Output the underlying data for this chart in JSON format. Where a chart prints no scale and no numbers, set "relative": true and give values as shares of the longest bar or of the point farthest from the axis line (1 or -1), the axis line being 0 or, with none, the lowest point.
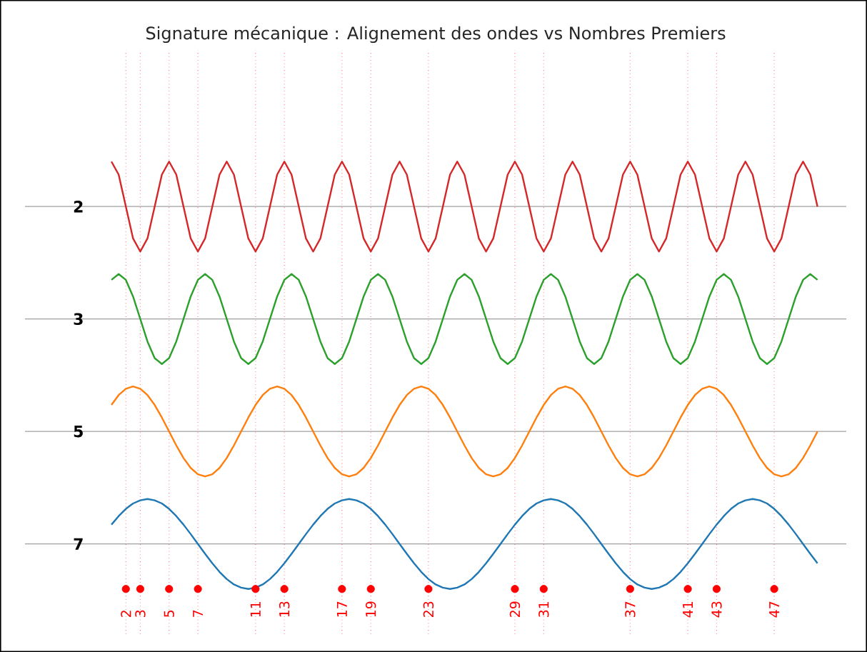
{
  "chart_data": [
    {
      "type": "line",
      "title": "Signature mécanique : Alignement des ondes vs Nombres Premiers",
      "relative": true,
      "tick_labels": false,
      "grid": "x",
      "marker": "none",
      "xlim": [
        -5,
        52
      ],
      "xticks": [
        2,
        3,
        5,
        7,
        11,
        13,
        17,
        19,
        23,
        29,
        31,
        37,
        41,
        43,
        47
      ],
      "x": [
        1,
        1.5,
        2,
        2.5,
        3,
        3.5,
        4,
        4.5,
        5,
        5.5,
        6,
        6.5,
        7,
        7.5,
        8,
        8.5,
        9,
        9.5,
        10,
        10.5,
        11,
        11.5,
        12,
        12.5,
        13,
        13.5,
        14,
        14.5,
        15,
        15.5,
        16,
        16.5,
        17,
        17.5,
        18,
        18.5,
        19,
        19.5,
        20,
        20.5,
        21,
        21.5,
        22,
        22.5,
        23,
        23.5,
        24,
        24.5,
        25,
        25.5,
        26,
        26.5,
        27,
        27.5,
        28,
        28.5,
        29,
        29.5,
        30,
        30.5,
        31,
        31.5,
        32,
        32.5,
        33,
        33.5,
        34,
        34.5,
        35,
        35.5,
        36,
        36.5,
        37,
        37.5,
        38,
        38.5,
        39,
        39.5,
        40,
        40.5,
        41,
        41.5,
        42,
        42.5,
        43,
        43.5,
        44,
        44.5,
        45,
        45.5,
        46,
        46.5,
        47,
        47.5,
        48,
        48.5,
        49,
        49.5,
        50
      ],
      "series": [
        {
          "name": "2",
          "color": "#d62728",
          "values": [
            1,
            0.71,
            0,
            -0.71,
            -1,
            -0.71,
            0,
            0.71,
            1,
            0.71,
            0,
            -0.71,
            -1,
            -0.71,
            0,
            0.71,
            1,
            0.71,
            0,
            -0.71,
            -1,
            -0.71,
            0,
            0.71,
            1,
            0.71,
            0,
            -0.71,
            -1,
            -0.71,
            0,
            0.71,
            1,
            0.71,
            0,
            -0.71,
            -1,
            -0.71,
            0,
            0.71,
            1,
            0.71,
            0,
            -0.71,
            -1,
            -0.71,
            0,
            0.71,
            1,
            0.71,
            0,
            -0.71,
            -1,
            -0.71,
            0,
            0.71,
            1,
            0.71,
            0,
            -0.71,
            -1,
            -0.71,
            0,
            0.71,
            1,
            0.71,
            0,
            -0.71,
            -1,
            -0.71,
            0,
            0.71,
            1,
            0.71,
            0,
            -0.71,
            -1,
            -0.71,
            0,
            0.71,
            1,
            0.71,
            0,
            -0.71,
            -1,
            -0.71,
            0,
            0.71,
            1,
            0.71,
            0,
            -0.71,
            -1,
            -0.71,
            0,
            0.71,
            1,
            0.71,
            0
          ]
        }
      ]
    },
    {
      "type": "line",
      "relative": true,
      "tick_labels": false,
      "grid": "x",
      "marker": "none",
      "xlim": [
        -5,
        52
      ],
      "xticks": [
        2,
        3,
        5,
        7,
        11,
        13,
        17,
        19,
        23,
        29,
        31,
        37,
        41,
        43,
        47
      ],
      "x": [
        1,
        1.5,
        2,
        2.5,
        3,
        3.5,
        4,
        4.5,
        5,
        5.5,
        6,
        6.5,
        7,
        7.5,
        8,
        8.5,
        9,
        9.5,
        10,
        10.5,
        11,
        11.5,
        12,
        12.5,
        13,
        13.5,
        14,
        14.5,
        15,
        15.5,
        16,
        16.5,
        17,
        17.5,
        18,
        18.5,
        19,
        19.5,
        20,
        20.5,
        21,
        21.5,
        22,
        22.5,
        23,
        23.5,
        24,
        24.5,
        25,
        25.5,
        26,
        26.5,
        27,
        27.5,
        28,
        28.5,
        29,
        29.5,
        30,
        30.5,
        31,
        31.5,
        32,
        32.5,
        33,
        33.5,
        34,
        34.5,
        35,
        35.5,
        36,
        36.5,
        37,
        37.5,
        38,
        38.5,
        39,
        39.5,
        40,
        40.5,
        41,
        41.5,
        42,
        42.5,
        43,
        43.5,
        44,
        44.5,
        45,
        45.5,
        46,
        46.5,
        47,
        47.5,
        48,
        48.5,
        49,
        49.5,
        50
      ],
      "series": [
        {
          "name": "3",
          "color": "#2ca02c",
          "values": [
            0.87,
            1,
            0.87,
            0.5,
            0,
            -0.5,
            -0.87,
            -1,
            -0.87,
            -0.5,
            0,
            0.5,
            0.87,
            1,
            0.87,
            0.5,
            0,
            -0.5,
            -0.87,
            -1,
            -0.87,
            -0.5,
            0,
            0.5,
            0.87,
            1,
            0.87,
            0.5,
            0,
            -0.5,
            -0.87,
            -1,
            -0.87,
            -0.5,
            0,
            0.5,
            0.87,
            1,
            0.87,
            0.5,
            0,
            -0.5,
            -0.87,
            -1,
            -0.87,
            -0.5,
            0,
            0.5,
            0.87,
            1,
            0.87,
            0.5,
            0,
            -0.5,
            -0.87,
            -1,
            -0.87,
            -0.5,
            0,
            0.5,
            0.87,
            1,
            0.87,
            0.5,
            0,
            -0.5,
            -0.87,
            -1,
            -0.87,
            -0.5,
            0,
            0.5,
            0.87,
            1,
            0.87,
            0.5,
            0,
            -0.5,
            -0.87,
            -1,
            -0.87,
            -0.5,
            0,
            0.5,
            0.87,
            1,
            0.87,
            0.5,
            0,
            -0.5,
            -0.87,
            -1,
            -0.87,
            -0.5,
            0,
            0.5,
            0.87,
            1,
            0.87
          ]
        }
      ]
    },
    {
      "type": "line",
      "relative": true,
      "tick_labels": false,
      "grid": "x",
      "marker": "none",
      "xlim": [
        -5,
        52
      ],
      "xticks": [
        2,
        3,
        5,
        7,
        11,
        13,
        17,
        19,
        23,
        29,
        31,
        37,
        41,
        43,
        47
      ],
      "x": [
        1,
        1.5,
        2,
        2.5,
        3,
        3.5,
        4,
        4.5,
        5,
        5.5,
        6,
        6.5,
        7,
        7.5,
        8,
        8.5,
        9,
        9.5,
        10,
        10.5,
        11,
        11.5,
        12,
        12.5,
        13,
        13.5,
        14,
        14.5,
        15,
        15.5,
        16,
        16.5,
        17,
        17.5,
        18,
        18.5,
        19,
        19.5,
        20,
        20.5,
        21,
        21.5,
        22,
        22.5,
        23,
        23.5,
        24,
        24.5,
        25,
        25.5,
        26,
        26.5,
        27,
        27.5,
        28,
        28.5,
        29,
        29.5,
        30,
        30.5,
        31,
        31.5,
        32,
        32.5,
        33,
        33.5,
        34,
        34.5,
        35,
        35.5,
        36,
        36.5,
        37,
        37.5,
        38,
        38.5,
        39,
        39.5,
        40,
        40.5,
        41,
        41.5,
        42,
        42.5,
        43,
        43.5,
        44,
        44.5,
        45,
        45.5,
        46,
        46.5,
        47,
        47.5,
        48,
        48.5,
        49,
        49.5,
        50
      ],
      "series": [
        {
          "name": "5",
          "color": "#ff7f0e",
          "values": [
            0.59,
            0.81,
            0.95,
            1,
            0.95,
            0.81,
            0.59,
            0.31,
            0,
            -0.31,
            -0.59,
            -0.81,
            -0.95,
            -1,
            -0.95,
            -0.81,
            -0.59,
            -0.31,
            0,
            0.31,
            0.59,
            0.81,
            0.95,
            1,
            0.95,
            0.81,
            0.59,
            0.31,
            0,
            -0.31,
            -0.59,
            -0.81,
            -0.95,
            -1,
            -0.95,
            -0.81,
            -0.59,
            -0.31,
            0,
            0.31,
            0.59,
            0.81,
            0.95,
            1,
            0.95,
            0.81,
            0.59,
            0.31,
            0,
            -0.31,
            -0.59,
            -0.81,
            -0.95,
            -1,
            -0.95,
            -0.81,
            -0.59,
            -0.31,
            0,
            0.31,
            0.59,
            0.81,
            0.95,
            1,
            0.95,
            0.81,
            0.59,
            0.31,
            0,
            -0.31,
            -0.59,
            -0.81,
            -0.95,
            -1,
            -0.95,
            -0.81,
            -0.59,
            -0.31,
            0,
            0.31,
            0.59,
            0.81,
            0.95,
            1,
            0.95,
            0.81,
            0.59,
            0.31,
            0,
            -0.31,
            -0.59,
            -0.81,
            -0.95,
            -1,
            -0.95,
            -0.81,
            -0.59,
            -0.31,
            0
          ]
        }
      ]
    },
    {
      "type": "line",
      "relative": true,
      "tick_labels": "x",
      "grid": "x",
      "marker": "none",
      "xlim": [
        -5,
        52
      ],
      "xticks": [
        2,
        3,
        5,
        7,
        11,
        13,
        17,
        19,
        23,
        29,
        31,
        37,
        41,
        43,
        47
      ],
      "x": [
        1,
        1.5,
        2,
        2.5,
        3,
        3.5,
        4,
        4.5,
        5,
        5.5,
        6,
        6.5,
        7,
        7.5,
        8,
        8.5,
        9,
        9.5,
        10,
        10.5,
        11,
        11.5,
        12,
        12.5,
        13,
        13.5,
        14,
        14.5,
        15,
        15.5,
        16,
        16.5,
        17,
        17.5,
        18,
        18.5,
        19,
        19.5,
        20,
        20.5,
        21,
        21.5,
        22,
        22.5,
        23,
        23.5,
        24,
        24.5,
        25,
        25.5,
        26,
        26.5,
        27,
        27.5,
        28,
        28.5,
        29,
        29.5,
        30,
        30.5,
        31,
        31.5,
        32,
        32.5,
        33,
        33.5,
        34,
        34.5,
        35,
        35.5,
        36,
        36.5,
        37,
        37.5,
        38,
        38.5,
        39,
        39.5,
        40,
        40.5,
        41,
        41.5,
        42,
        42.5,
        43,
        43.5,
        44,
        44.5,
        45,
        45.5,
        46,
        46.5,
        47,
        47.5,
        48,
        48.5,
        49,
        49.5,
        50
      ],
      "series": [
        {
          "name": "7",
          "color": "#1f77b4",
          "values": [
            0.43,
            0.62,
            0.78,
            0.9,
            0.97,
            1,
            0.97,
            0.9,
            0.78,
            0.62,
            0.43,
            0.22,
            0,
            -0.22,
            -0.43,
            -0.62,
            -0.78,
            -0.9,
            -0.97,
            -1,
            -0.97,
            -0.9,
            -0.78,
            -0.62,
            -0.43,
            -0.22,
            0,
            0.22,
            0.43,
            0.62,
            0.78,
            0.9,
            0.97,
            1,
            0.97,
            0.9,
            0.78,
            0.62,
            0.43,
            0.22,
            0,
            -0.22,
            -0.43,
            -0.62,
            -0.78,
            -0.9,
            -0.97,
            -1,
            -0.97,
            -0.9,
            -0.78,
            -0.62,
            -0.43,
            -0.22,
            0,
            0.22,
            0.43,
            0.62,
            0.78,
            0.9,
            0.97,
            1,
            0.97,
            0.9,
            0.78,
            0.62,
            0.43,
            0.22,
            0,
            -0.22,
            -0.43,
            -0.62,
            -0.78,
            -0.9,
            -0.97,
            -1,
            -0.97,
            -0.9,
            -0.78,
            -0.62,
            -0.43,
            -0.22,
            0,
            0.22,
            0.43,
            0.62,
            0.78,
            0.9,
            0.97,
            1,
            0.97,
            0.9,
            0.78,
            0.62,
            0.43,
            0.22,
            0,
            -0.22,
            -0.43
          ]
        },
        {
          "type": "scatter",
          "marker": "circle",
          "color": "#ff0000",
          "x": [
            2,
            3,
            5,
            7,
            11,
            13,
            17,
            19,
            23,
            29,
            31,
            37,
            41,
            43,
            47
          ],
          "values": [
            -1,
            -1,
            -1,
            -1,
            -1,
            -1,
            -1,
            -1,
            -1,
            -1,
            -1,
            -1,
            -1,
            -1,
            -1
          ]
        }
      ]
    }
  ]
}
